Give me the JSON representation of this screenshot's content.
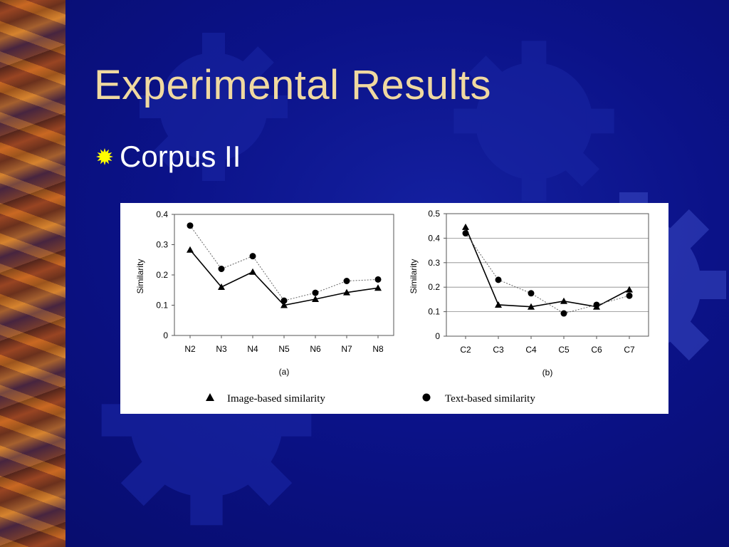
{
  "slide": {
    "title": "Experimental Results",
    "bullet": "Corpus II",
    "colors": {
      "title": "#f0d9a0",
      "background": "#0b1288",
      "bullet_icon": "#ffff00"
    },
    "bullet_icon": "sunburst-bullet-icon"
  },
  "chart_data": [
    {
      "type": "line",
      "caption": "(a)",
      "ylabel": "Similarity",
      "xlabel": "",
      "categories": [
        "N2",
        "N3",
        "N4",
        "N5",
        "N6",
        "N7",
        "N8"
      ],
      "ylim": [
        0,
        0.4
      ],
      "yticks": [
        "0",
        "0.1",
        "0.2",
        "0.3",
        "0.4"
      ],
      "grid": false,
      "series": [
        {
          "name": "Image-based similarity",
          "marker": "triangle",
          "style": "solid",
          "values": [
            0.283,
            0.16,
            0.21,
            0.1,
            0.12,
            0.142,
            0.157
          ]
        },
        {
          "name": "Text-based similarity",
          "marker": "circle",
          "style": "dotted",
          "values": [
            0.363,
            0.22,
            0.262,
            0.115,
            0.141,
            0.18,
            0.185
          ]
        }
      ]
    },
    {
      "type": "line",
      "caption": "(b)",
      "ylabel": "Similarity",
      "xlabel": "",
      "categories": [
        "C2",
        "C3",
        "C4",
        "C5",
        "C6",
        "C7"
      ],
      "ylim": [
        0,
        0.5
      ],
      "yticks": [
        "0",
        "0.1",
        "0.2",
        "0.3",
        "0.4",
        "0.5"
      ],
      "grid": true,
      "series": [
        {
          "name": "Image-based similarity",
          "marker": "triangle",
          "style": "solid",
          "values": [
            0.445,
            0.128,
            0.12,
            0.143,
            0.12,
            0.19
          ]
        },
        {
          "name": "Text-based similarity",
          "marker": "circle",
          "style": "dotted",
          "values": [
            0.42,
            0.23,
            0.175,
            0.093,
            0.128,
            0.165
          ]
        }
      ]
    }
  ],
  "legend": {
    "placement": "bottom",
    "items": [
      "Image-based similarity",
      "Text-based similarity"
    ]
  }
}
